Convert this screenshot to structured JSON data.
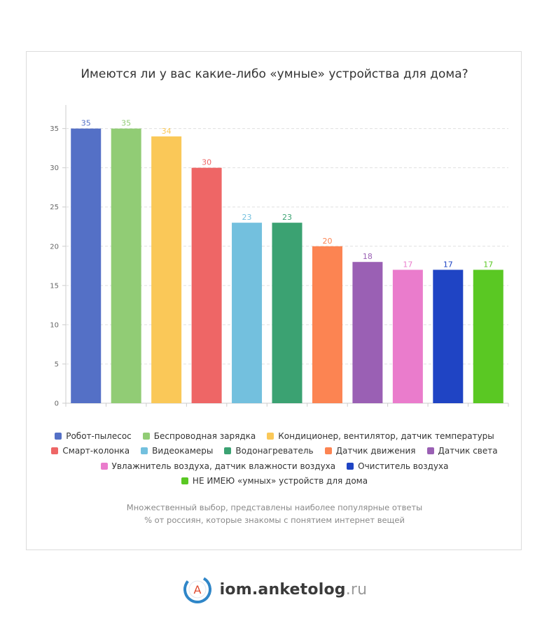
{
  "chart_data": {
    "type": "bar",
    "title": "Имеются ли у вас какие-либо «умные» устройства для дома?",
    "xlabel": "",
    "ylabel": "",
    "ylim": [
      0,
      38
    ],
    "y_ticks": [
      0,
      5,
      10,
      15,
      20,
      25,
      30,
      35
    ],
    "grid": true,
    "categories": [
      "Робот-пылесос",
      "Беспроводная зарядка",
      "Кондиционер, вентилятор, датчик температуры",
      "Смарт-колонка",
      "Видеокамеры",
      "Водонагреватель",
      "Датчик движения",
      "Датчик света",
      "Увлажнитель воздуха, датчик влажности воздуха",
      "Очиститель воздуха",
      "НЕ ИМЕЮ «умных» устройств для дома"
    ],
    "values": [
      35,
      35,
      34,
      30,
      23,
      23,
      20,
      18,
      17,
      17,
      17
    ],
    "colors": [
      "#5470c6",
      "#91cc75",
      "#fac858",
      "#ee6666",
      "#73c0de",
      "#3ba272",
      "#fc8452",
      "#9a60b4",
      "#ea7ccc",
      "#1f44c4",
      "#5ac823"
    ],
    "legend_position": "bottom"
  },
  "footnotes": {
    "line1": "Множественный выбор, представлены наиболее популярные ответы",
    "line2": "% от россиян, которые знакомы с понятием интернет вещей"
  },
  "brand": {
    "logo_letter": "A",
    "name": "iom.anketolog",
    "tld": ".ru"
  }
}
